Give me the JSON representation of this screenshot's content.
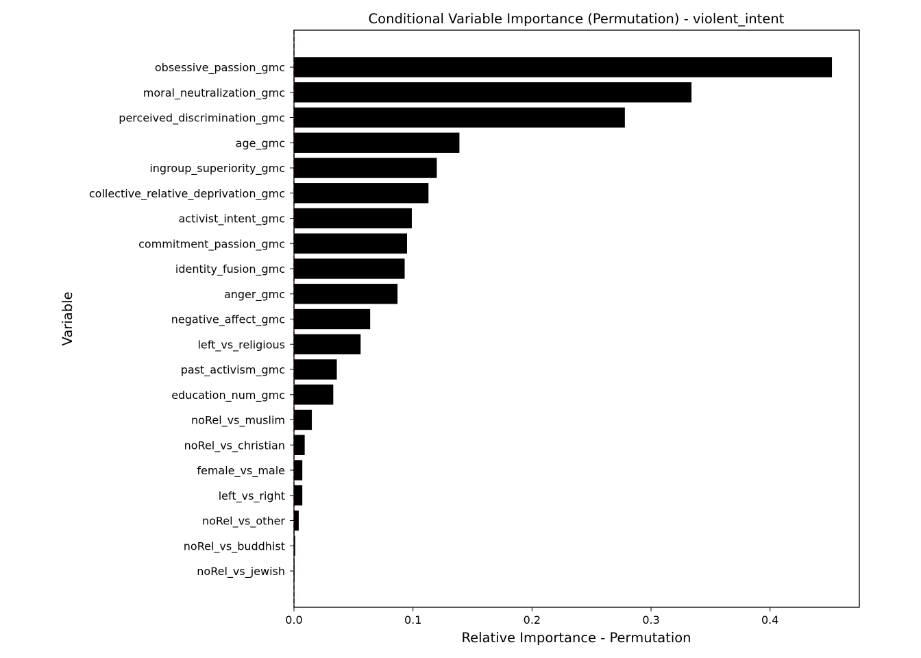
{
  "chart_data": {
    "type": "bar",
    "orientation": "horizontal",
    "title": "Conditional Variable Importance (Permutation) - violent_intent",
    "xlabel": "Relative Importance - Permutation",
    "ylabel": "Variable",
    "xlim": [
      0.0,
      0.475
    ],
    "xticks": [
      0.0,
      0.1,
      0.2,
      0.3,
      0.4
    ],
    "xtick_labels": [
      "0.0",
      "0.1",
      "0.2",
      "0.3",
      "0.4"
    ],
    "grid": false,
    "bar_color": "#000000",
    "reference_line": {
      "x": 0.0,
      "color": "#8b0000",
      "style": "dashed"
    },
    "categories": [
      "obsessive_passion_gmc",
      "moral_neutralization_gmc",
      "perceived_discrimination_gmc",
      "age_gmc",
      "ingroup_superiority_gmc",
      "collective_relative_deprivation_gmc",
      "activist_intent_gmc",
      "commitment_passion_gmc",
      "identity_fusion_gmc",
      "anger_gmc",
      "negative_affect_gmc",
      "left_vs_religious",
      "past_activism_gmc",
      "education_num_gmc",
      "noRel_vs_muslim",
      "noRel_vs_christian",
      "female_vs_male",
      "left_vs_right",
      "noRel_vs_other",
      "noRel_vs_buddhist",
      "noRel_vs_jewish"
    ],
    "values": [
      0.452,
      0.334,
      0.278,
      0.139,
      0.12,
      0.113,
      0.099,
      0.095,
      0.093,
      0.087,
      0.064,
      0.056,
      0.036,
      0.033,
      0.015,
      0.009,
      0.007,
      0.007,
      0.004,
      0.001,
      0.0005
    ]
  }
}
